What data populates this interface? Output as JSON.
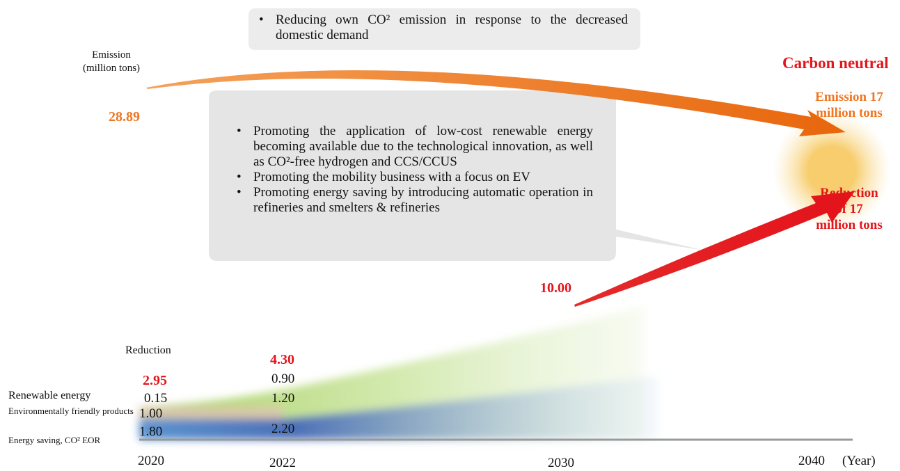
{
  "top_note": {
    "bullets": [
      "Reducing own CO² emission in response to the decreased domestic demand"
    ]
  },
  "emission_label": [
    "Emission",
    "(million tons)"
  ],
  "start_emission": "28.89",
  "goal": "Carbon neutral",
  "end_emission": "Emission 17 million tons",
  "end_reduction": "Reduction of 17 million tons",
  "main_note": {
    "bullets": [
      "Promoting the application of low-cost renewable energy becoming available due to the technological innovation, as well as CO²-free hydrogen and CCS/CCUS",
      "Promoting the mobility business with a focus on EV",
      "Promoting energy saving by introducing automatic operation in refineries and smelters & refineries"
    ]
  },
  "reduction_2030": "10.00",
  "reduction_label": "Reduction",
  "categories": [
    "Renewable energy",
    "Environmentally friendly products",
    "Energy saving, CO² EOR"
  ],
  "columns": [
    {
      "total": "2.95",
      "values": [
        "0.15",
        "1.00",
        "1.80"
      ]
    },
    {
      "total": "4.30",
      "values": [
        "0.90",
        "1.20",
        "2.20"
      ]
    }
  ],
  "years": [
    "2020",
    "2022",
    "2030",
    "2040"
  ],
  "year_unit": "(Year)"
}
